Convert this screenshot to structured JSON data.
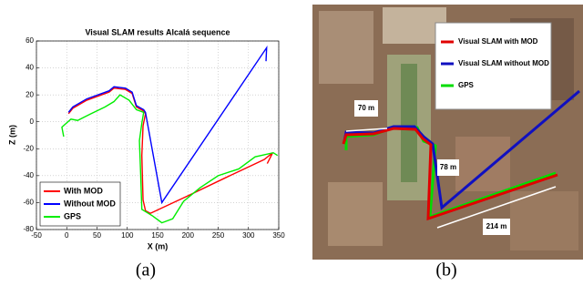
{
  "chart_data": {
    "type": "line",
    "title": "Visual SLAM results Alcalá sequence",
    "x_label": "X (m)",
    "y_label": "Z (m)",
    "xlim": [
      -50,
      350
    ],
    "xticks": [
      -50,
      0,
      50,
      100,
      150,
      200,
      250,
      300,
      350
    ],
    "ylim": [
      -80,
      60
    ],
    "yticks": [
      -80,
      -60,
      -40,
      -20,
      0,
      20,
      40,
      60
    ],
    "grid": true,
    "legend": "lower left",
    "series": [
      {
        "name": "With MOD",
        "color": "#ff0000",
        "x": [
          3,
          10,
          33,
          70,
          78,
          97,
          108,
          115,
          123,
          127,
          130,
          126,
          124,
          126,
          130,
          138,
          200,
          260,
          326,
          340,
          331
        ],
        "values": [
          6,
          10,
          16,
          22,
          25,
          24,
          21,
          11,
          9,
          8,
          6,
          -3,
          -25,
          -58,
          -66,
          -68,
          -55,
          -42,
          -28,
          -23,
          -31
        ]
      },
      {
        "name": "Without MOD",
        "color": "#0000ff",
        "x": [
          3,
          10,
          33,
          70,
          78,
          97,
          108,
          115,
          123,
          127,
          130,
          157,
          330,
          329
        ],
        "values": [
          7,
          11,
          17,
          23,
          26,
          25,
          22,
          12,
          10,
          9,
          7,
          -60,
          55,
          45
        ]
      },
      {
        "name": "GPS",
        "color": "#00ee00",
        "x": [
          -5,
          -8,
          7,
          18,
          40,
          63,
          78,
          88,
          103,
          115,
          127,
          124,
          120,
          122,
          124,
          142,
          157,
          175,
          193,
          220,
          250,
          284,
          311,
          341,
          348
        ],
        "values": [
          -11,
          -4,
          2,
          1,
          6,
          11,
          15,
          20,
          16,
          9,
          7,
          -1,
          -14,
          -38,
          -65,
          -70,
          -75,
          -72,
          -59,
          -49,
          -40,
          -35,
          -26,
          -23,
          -25
        ]
      }
    ]
  },
  "panel_b": {
    "legend": [
      "Visual SLAM with MOD",
      "Visual SLAM without MOD",
      "GPS"
    ],
    "distances": [
      "70 m",
      "78 m",
      "214 m"
    ]
  },
  "captions": [
    "(a)",
    "(b)"
  ]
}
